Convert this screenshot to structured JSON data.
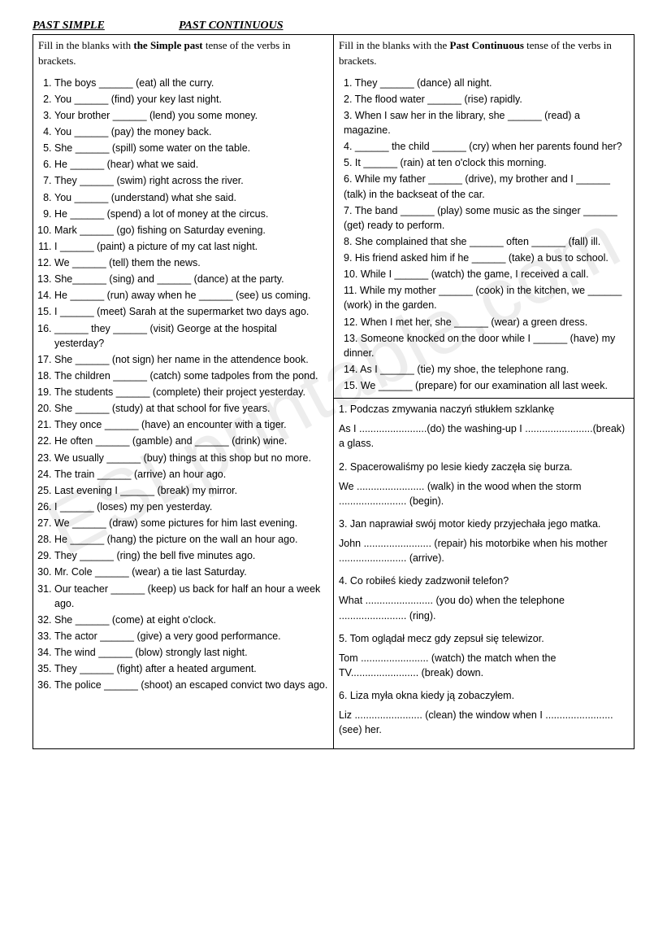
{
  "header": {
    "left": "PAST SIMPLE",
    "right": "PAST CONTINUOUS"
  },
  "watermark": "ESLprintable.com",
  "simplePast": {
    "instruction_pre": "Fill in the blanks with ",
    "instruction_bold": "the Simple past",
    "instruction_post": " tense of the verbs in brackets.",
    "items": [
      "The boys ______ (eat) all the curry.",
      "You ______ (find) your key last night.",
      "Your brother ______ (lend) you some money.",
      "You ______ (pay) the money back.",
      "She ______ (spill) some water on the table.",
      "He ______ (hear) what we said.",
      "They ______ (swim) right across the river.",
      "You ______ (understand) what she said.",
      "He ______ (spend) a lot of money at the circus.",
      "Mark ______ (go) fishing on Saturday evening.",
      "I ______ (paint) a picture of my cat last night.",
      "We ______ (tell) them the news.",
      "She______ (sing) and ______ (dance) at the party.",
      "He ______ (run) away when he ______ (see) us coming.",
      "I ______ (meet) Sarah at the supermarket two days ago.",
      "______ they ______ (visit) George at the hospital yesterday?",
      "She ______ (not sign) her name in the attendence book.",
      "The children ______ (catch) some tadpoles from the pond.",
      "The students ______ (complete) their project yesterday.",
      "She ______ (study) at that school for five years.",
      "They once ______ (have) an encounter with a tiger.",
      "He often ______ (gamble) and ______ (drink) wine.",
      "We usually ______ (buy) things at this shop but no more.",
      "The train ______ (arrive) an hour ago.",
      "Last evening I ______ (break) my mirror.",
      "I ______ (loses) my pen yesterday.",
      "We ______ (draw) some pictures for him last evening.",
      "He ______ (hang) the picture on the wall an hour ago.",
      "They ______ (ring) the bell five minutes ago.",
      "Mr. Cole ______ (wear) a tie last Saturday.",
      "Our teacher ______ (keep) us back for half an hour a week ago.",
      "She ______ (come) at eight o'clock.",
      "The actor ______ (give) a very good performance.",
      "The wind ______ (blow) strongly last night.",
      "They ______ (fight) after a heated argument.",
      "The police ______ (shoot) an escaped convict two days ago."
    ]
  },
  "pastContinuous": {
    "instruction_pre": "Fill in the blanks with the ",
    "instruction_bold": "Past Continuous",
    "instruction_post": " tense of the verbs in brackets.",
    "items": [
      "1. They ______ (dance) all night.",
      "2. The flood water ______ (rise) rapidly.",
      "3. When I saw her in the library, she ______ (read) a magazine.",
      "4. ______ the child ______ (cry) when her parents found her?",
      "5. It ______ (rain) at ten o'clock this morning.",
      "6. While my father ______ (drive), my brother and I ______ (talk) in the backseat of the car.",
      "7. The band ______ (play) some music as the singer ______ (get) ready to perform.",
      "8. She complained that she ______ often ______ (fall) ill.",
      "9. His friend asked him if he ______ (take) a bus to school.",
      "10. While I ______ (watch) the game, I received a call.",
      "11. While my mother ______ (cook) in the kitchen, we ______ (work) in the garden.",
      "12. When I met her, she ______ (wear) a green dress.",
      "13. Someone knocked on the door while I ______ (have) my dinner.",
      "14. As I ______ (tie) my shoe, the telephone rang.",
      "15. We ______ (prepare) for our examination all last week."
    ]
  },
  "translation": [
    {
      "prompt": "1. Podczas zmywania naczyń stłukłem szklankę",
      "answer": "As I ........................(do) the washing-up I ........................(break) a glass."
    },
    {
      "prompt": "2. Spacerowaliśmy po lesie kiedy zaczęła się burza.",
      "answer": "We ........................ (walk) in the wood when the storm ........................ (begin)."
    },
    {
      "prompt": "3. Jan naprawiał swój motor kiedy przyjechała jego matka.",
      "answer": "John ........................ (repair) his motorbike when his mother ........................ (arrive)."
    },
    {
      "prompt": "4. Co robiłeś kiedy zadzwonił telefon?",
      "answer": "What ........................ (you do) when the telephone ........................ (ring)."
    },
    {
      "prompt": "5. Tom oglądał mecz gdy zepsuł się telewizor.",
      "answer": "Tom ........................ (watch) the match when the TV........................ (break) down."
    },
    {
      "prompt": "6. Liza myła okna kiedy ją zobaczyłem.",
      "answer": "Liz ........................ (clean) the window when I ........................ (see) her."
    }
  ]
}
